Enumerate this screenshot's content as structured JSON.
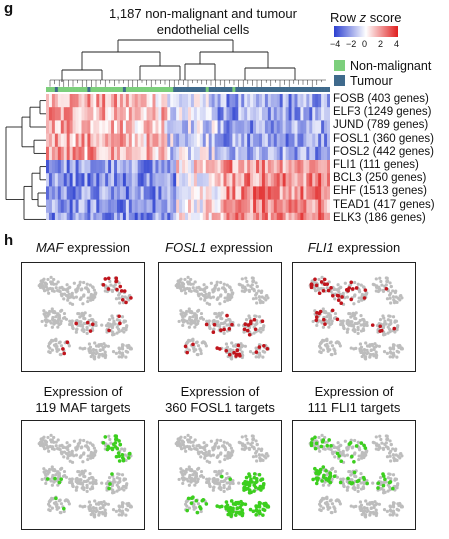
{
  "panel_g": {
    "letter": "g",
    "title_line1": "1,187 non-malignant and tumour",
    "title_line2": "endothelial cells",
    "colorbar": {
      "label_prefix": "Row ",
      "label_italic": "z",
      "label_suffix": " score",
      "ticks": [
        "−4",
        "−2",
        "0",
        "2",
        "4"
      ],
      "low_color": "#2b3fd0",
      "mid_color": "#ffffff",
      "high_color": "#e01e1e"
    },
    "legend": [
      {
        "label": "Non-malignant",
        "color": "#7ccf7c"
      },
      {
        "label": "Tumour",
        "color": "#3f6a8c"
      }
    ],
    "rows": [
      "FOSB (403 genes)",
      "ELF3 (1249 genes)",
      "JUND (789 genes)",
      "FOSL1 (360 genes)",
      "FOSL2 (442 genes)",
      "FLI1 (111 genes)",
      "BCL3 (250 genes)",
      "EHF (1513 genes)",
      "TEAD1 (417 genes)",
      "ELK3 (186 genes)"
    ]
  },
  "panel_h": {
    "letter": "h",
    "top_titles": [
      {
        "italic": "MAF",
        "rest": " expression"
      },
      {
        "italic": "FOSL1",
        "rest": " expression"
      },
      {
        "italic": "FLI1",
        "rest": " expression"
      }
    ],
    "bottom_titles": [
      {
        "line1": "Expression of",
        "line2": "119 MAF targets"
      },
      {
        "line1": "Expression of",
        "line2": "360 FOSL1 targets"
      },
      {
        "line1": "Expression of",
        "line2": "111 FLI1 targets"
      }
    ],
    "colors": {
      "background_cells": "#bdbdbd",
      "expression": "#c0141c",
      "targets": "#3ccf1e"
    }
  },
  "chart_data": [
    {
      "type": "heatmap",
      "title": "1,187 non-malignant and tumour endothelial cells",
      "rows": [
        "FOSB (403 genes)",
        "ELF3 (1249 genes)",
        "JUND (789 genes)",
        "FOSL1 (360 genes)",
        "FOSL2 (442 genes)",
        "FLI1 (111 genes)",
        "BCL3 (250 genes)",
        "EHF (1513 genes)",
        "TEAD1 (417 genes)",
        "ELK3 (186 genes)"
      ],
      "column_groups": [
        "Non-malignant",
        "Tumour"
      ],
      "colorbar_range": [
        -4,
        4
      ],
      "colorbar_label": "Row z score",
      "pattern": "Rows FOSB–FOSL2 high (red) in left (non-malignant) columns, low (blue) in right columns; rows FLI1–ELK3 low in left columns, high in right (tumour) columns"
    },
    {
      "type": "scatter",
      "panels": [
        "MAF expression",
        "FOSL1 expression",
        "FLI1 expression",
        "Expression of 119 MAF targets",
        "Expression of 360 FOSL1 targets",
        "Expression of 111 FLI1 targets"
      ]
    }
  ]
}
